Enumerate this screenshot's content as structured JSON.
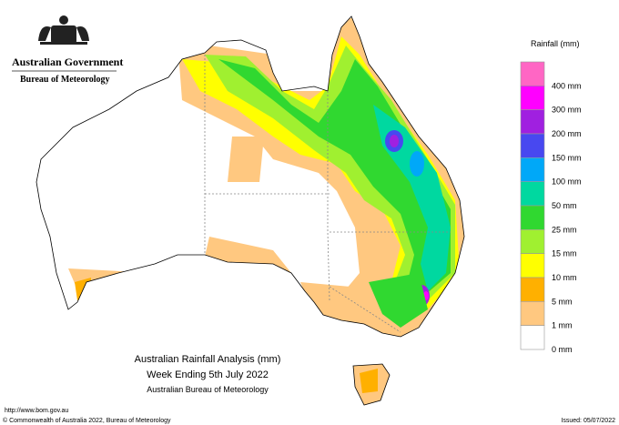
{
  "header": {
    "government": "Australian Government",
    "agency": "Bureau of Meteorology"
  },
  "legend": {
    "title": "Rainfall (mm)",
    "items": [
      {
        "label": "400 mm",
        "color": "#ff66c4"
      },
      {
        "label": "300 mm",
        "color": "#ff00ff"
      },
      {
        "label": "200 mm",
        "color": "#a020e0"
      },
      {
        "label": "150 mm",
        "color": "#4848f0"
      },
      {
        "label": "100 mm",
        "color": "#00a8f8"
      },
      {
        "label": "50 mm",
        "color": "#00d8a0"
      },
      {
        "label": "25 mm",
        "color": "#30d830"
      },
      {
        "label": "15 mm",
        "color": "#a0f030"
      },
      {
        "label": "10 mm",
        "color": "#ffff00"
      },
      {
        "label": "5 mm",
        "color": "#ffb000"
      },
      {
        "label": "1 mm",
        "color": "#ffc880"
      },
      {
        "label": "0 mm",
        "color": "#ffffff"
      }
    ]
  },
  "title": {
    "line1": "Australian Rainfall Analysis (mm)",
    "line2": "Week Ending 5th July 2022",
    "line3": "Australian Bureau of Meteorology"
  },
  "footer": {
    "url": "http://www.bom.gov.au",
    "copyright": "© Commonwealth of Australia 2022, Bureau of Meteorology",
    "issued": "Issued: 05/07/2022"
  }
}
